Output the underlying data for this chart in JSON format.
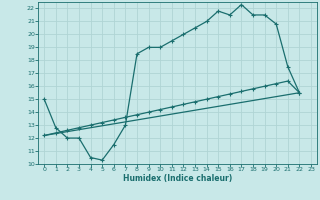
{
  "title": "",
  "xlabel": "Humidex (Indice chaleur)",
  "bg_color": "#c8e8e8",
  "grid_color": "#b0d4d4",
  "line_color": "#1a6e6e",
  "xlim": [
    -0.5,
    23.5
  ],
  "ylim": [
    10,
    22.5
  ],
  "xticks": [
    0,
    1,
    2,
    3,
    4,
    5,
    6,
    7,
    8,
    9,
    10,
    11,
    12,
    13,
    14,
    15,
    16,
    17,
    18,
    19,
    20,
    21,
    22,
    23
  ],
  "yticks": [
    10,
    11,
    12,
    13,
    14,
    15,
    16,
    17,
    18,
    19,
    20,
    21,
    22
  ],
  "curve1_x": [
    0,
    1,
    2,
    3,
    4,
    5,
    6,
    7,
    8,
    9,
    10,
    11,
    12,
    13,
    14,
    15,
    16,
    17,
    18,
    19,
    20,
    21,
    22
  ],
  "curve1_y": [
    15.0,
    12.8,
    12.0,
    12.0,
    10.5,
    10.3,
    11.5,
    13.0,
    18.5,
    19.0,
    19.0,
    19.5,
    20.0,
    20.5,
    21.0,
    21.8,
    21.5,
    22.3,
    21.5,
    21.5,
    20.8,
    17.5,
    15.5
  ],
  "curve2_x": [
    0,
    1,
    2,
    3,
    4,
    5,
    6,
    7,
    8,
    9,
    10,
    11,
    12,
    13,
    14,
    15,
    16,
    17,
    18,
    19,
    20,
    21,
    22
  ],
  "curve2_y": [
    12.2,
    12.4,
    12.6,
    12.8,
    13.0,
    13.2,
    13.4,
    13.6,
    13.8,
    14.0,
    14.2,
    14.4,
    14.6,
    14.8,
    15.0,
    15.2,
    15.4,
    15.6,
    15.8,
    16.0,
    16.2,
    16.4,
    15.5
  ],
  "curve3_x": [
    0,
    22
  ],
  "curve3_y": [
    12.2,
    15.5
  ]
}
